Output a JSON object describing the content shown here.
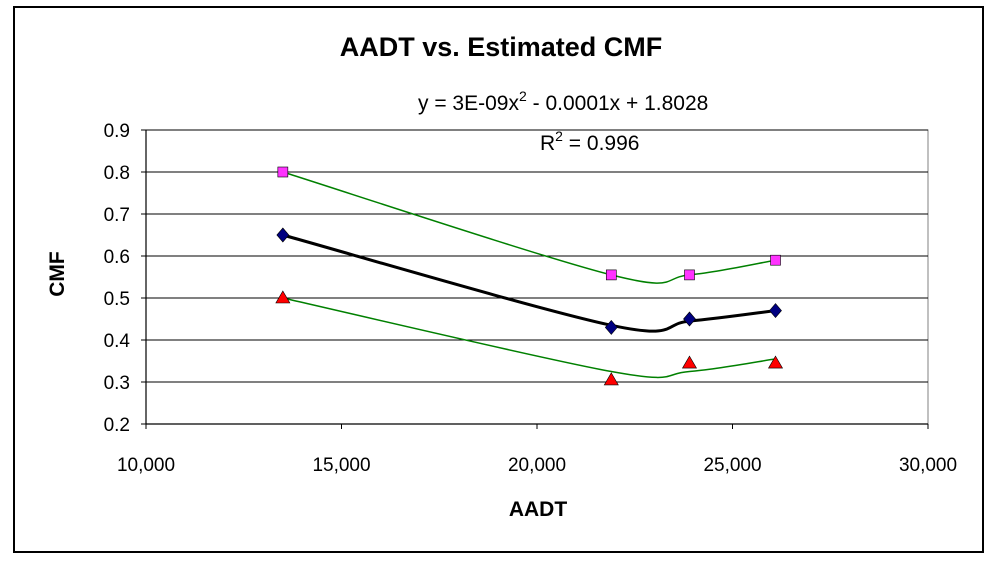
{
  "chart_data": {
    "type": "scatter",
    "title": "AADT vs. Estimated CMF",
    "xlabel": "AADT",
    "ylabel": "CMF",
    "xlim": [
      10000,
      30000
    ],
    "ylim": [
      0.2,
      0.9
    ],
    "xticks": [
      10000,
      15000,
      20000,
      25000,
      30000
    ],
    "xtick_labels": [
      "10,000",
      "15,000",
      "20,000",
      "25,000",
      "30,000"
    ],
    "yticks": [
      0.2,
      0.3,
      0.4,
      0.5,
      0.6,
      0.7,
      0.8,
      0.9
    ],
    "ytick_labels": [
      "0.2",
      "0.3",
      "0.4",
      "0.5",
      "0.6",
      "0.7",
      "0.8",
      "0.9"
    ],
    "grid": "horizontal",
    "legend": "none",
    "trendline": {
      "equation_parts": [
        "y = 3E-09x",
        "2",
        " - 0.0001x + 1.8028"
      ],
      "r2_parts": [
        "R",
        "2",
        " = 0.996"
      ]
    },
    "series": [
      {
        "marker": "square",
        "color": "#ff33ff",
        "trend_color": "#008000",
        "x": [
          13500,
          21900,
          23900,
          26100
        ],
        "y": [
          0.8,
          0.555,
          0.555,
          0.59
        ],
        "trend_y": [
          0.8,
          0.555,
          0.555,
          0.59
        ]
      },
      {
        "marker": "diamond",
        "color": "#000080",
        "trend_color": "#000000",
        "x": [
          13500,
          21900,
          23900,
          26100
        ],
        "y": [
          0.65,
          0.43,
          0.45,
          0.47
        ],
        "trend_y": [
          0.65,
          0.435,
          0.445,
          0.47
        ]
      },
      {
        "marker": "triangle",
        "color": "#ff0000",
        "trend_color": "#008000",
        "x": [
          13500,
          21900,
          23900,
          26100
        ],
        "y": [
          0.5,
          0.305,
          0.345,
          0.345
        ],
        "trend_y": [
          0.5,
          0.325,
          0.325,
          0.355
        ]
      }
    ]
  }
}
